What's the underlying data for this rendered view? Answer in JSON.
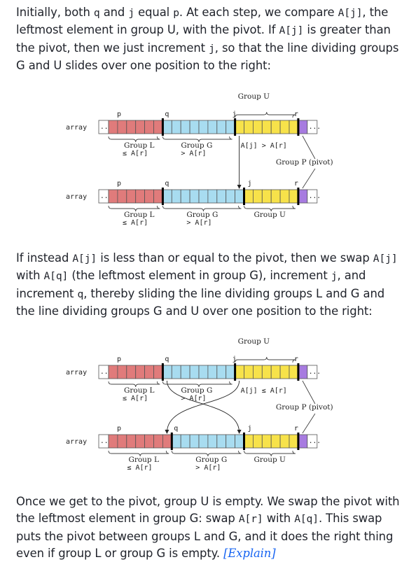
{
  "para1": {
    "t1": "Initially, both ",
    "c1": "q",
    "t2": " and ",
    "c2": "j",
    "t3": " equal ",
    "c3": "p",
    "t4": ". At each step, we compare ",
    "c4": "A[j]",
    "t5": ", the leftmost element in group U, with the pivot. If ",
    "c5": "A[j]",
    "t6": " is greater than the pivot, then we just increment ",
    "c6": "j",
    "t7": ", so that the line dividing groups G and U slides over one position to the right:"
  },
  "para2": {
    "t1": "If instead ",
    "c1": "A[j]",
    "t2": " is less than or equal to the pivot, then we swap ",
    "c2": "A[j]",
    "t3": " with ",
    "c3": "A[q]",
    "t4": " (the leftmost element in group G), increment ",
    "c4": "j",
    "t5": ", and increment ",
    "c5": "q",
    "t6": ", thereby sliding the line dividing groups L and G and the line dividing groups G and U over one position to the right:"
  },
  "para3": {
    "t1": "Once we get to the pivot, group U is empty. We swap the pivot with the leftmost element in group G: swap ",
    "c1": "A[r]",
    "t2": " with ",
    "c2": "A[q]",
    "t3": ". This swap puts the pivot between groups L and G, and it does the right thing even if group L or group G is empty. ",
    "link": "[Explain]"
  },
  "fig1": {
    "array_label": "array",
    "ellipsis": "...",
    "p": "p",
    "q": "q",
    "j": "j",
    "r": "r",
    "group_u": "Group U",
    "group_l": "Group L",
    "group_l_cond": "≤ A[r]",
    "group_g": "Group G",
    "group_g_cond": "> A[r]",
    "compare": "A[j] > A[r]",
    "group_p": "Group P (pivot)"
  },
  "fig2": {
    "array_label": "array",
    "ellipsis": "...",
    "p": "p",
    "q": "q",
    "j": "j",
    "r": "r",
    "group_u": "Group U",
    "group_l": "Group L",
    "group_l_cond": "≤ A[r]",
    "group_g": "Group G",
    "group_g_cond": "> A[r]",
    "compare": "A[j] ≤ A[r]",
    "group_p": "Group P (pivot)"
  },
  "colors": {
    "red": "#e07b7b",
    "blue": "#a8dcf0",
    "yellow": "#f7e24a",
    "purple": "#a77be0"
  }
}
